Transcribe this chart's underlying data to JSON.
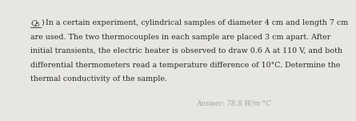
{
  "background_color": "#e8e6e2",
  "line1": "In a certain experiment, cylindrical samples of diameter 4 cm and length 7 cm",
  "line2": "are used. The two thermocouples in each sample are placed 3 cm apart. After",
  "line3": "initial transients, the electric heater is observed to draw 0.6 A at 110 V, and both",
  "line4": "differential thermometers read a temperature difference of 10°C. Determine the",
  "line5": "thermal conductivity of the sample.",
  "answer_label": "Answer: 78.8 W/m °C",
  "text_color": "#2a2a2a",
  "answer_color": "#a0a0a0",
  "font_size": 6.8,
  "answer_font_size": 6.2,
  "q_label": "Q",
  "q_number": "5",
  "q_paren": ")"
}
